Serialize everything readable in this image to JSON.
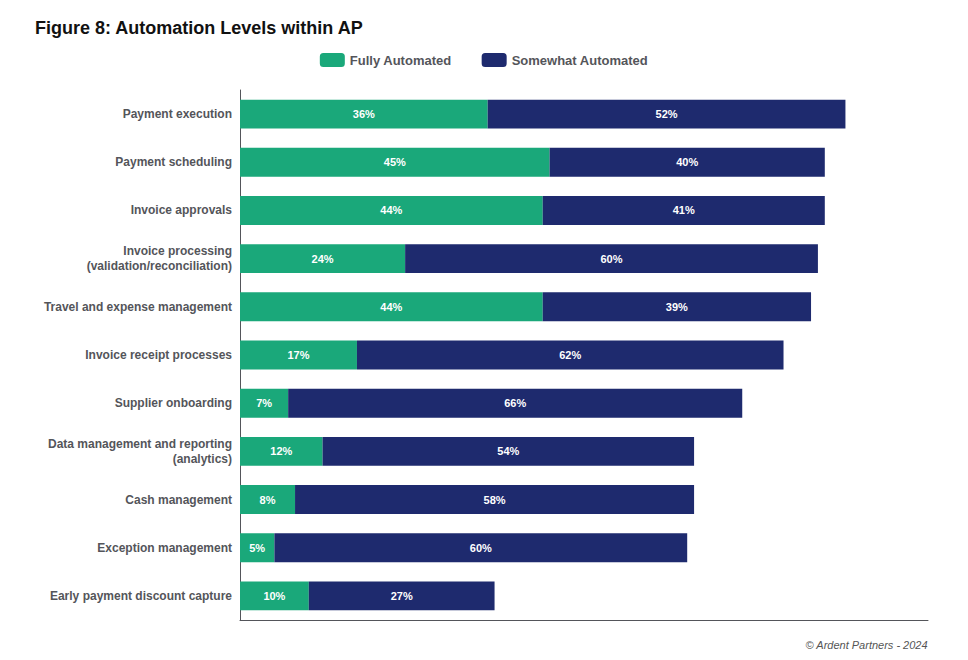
{
  "chart_data": {
    "type": "bar",
    "title": "Figure 8: Automation Levels within AP",
    "orientation": "horizontal",
    "stacked": true,
    "categories": [
      "Payment execution",
      "Payment scheduling",
      "Invoice approvals",
      "Invoice processing\n(validation/reconciliation)",
      "Travel and expense management",
      "Invoice receipt processes",
      "Supplier onboarding",
      "Data management and reporting\n(analytics)",
      "Cash management",
      "Exception management",
      "Early payment discount capture"
    ],
    "series": [
      {
        "name": "Fully Automated",
        "color": "#1aa87a",
        "values": [
          36,
          45,
          44,
          24,
          44,
          17,
          7,
          12,
          8,
          5,
          10
        ],
        "value_labels": [
          "36%",
          "45%",
          "44%",
          "24%",
          "44%",
          "17%",
          "7%",
          "12%",
          "8%",
          "5%",
          "10%"
        ]
      },
      {
        "name": "Somewhat Automated",
        "color": "#1e2a6e",
        "values": [
          52,
          40,
          41,
          60,
          39,
          62,
          66,
          54,
          58,
          60,
          27
        ],
        "value_labels": [
          "52%",
          "40%",
          "41%",
          "60%",
          "39%",
          "62%",
          "66%",
          "54%",
          "58%",
          "60%",
          "27%"
        ]
      }
    ],
    "xlim": [
      0,
      100
    ],
    "grid": false,
    "legend": "top",
    "data_labels": true,
    "tick_labels": "y",
    "annotations": [
      "© Ardent Partners - 2024"
    ]
  }
}
